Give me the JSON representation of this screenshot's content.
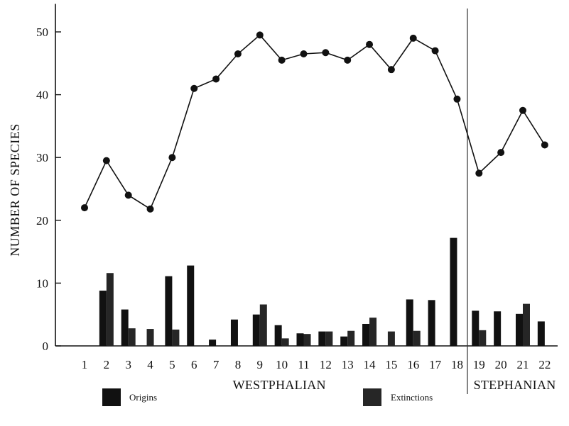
{
  "chart_data": {
    "type": "bar+line",
    "ylabel": "NUMBER OF SPECIES",
    "ylim": [
      0,
      54
    ],
    "yticks": [
      0,
      10,
      20,
      30,
      40,
      50
    ],
    "categories": [
      "1",
      "2",
      "3",
      "4",
      "5",
      "6",
      "7",
      "8",
      "9",
      "10",
      "11",
      "12",
      "13",
      "14",
      "15",
      "16",
      "17",
      "18",
      "19",
      "20",
      "21",
      "22"
    ],
    "periods": [
      {
        "label": "WESTPHALIAN",
        "from": "1",
        "to": "18"
      },
      {
        "label": "STEPHANIAN",
        "from": "19",
        "to": "22"
      }
    ],
    "line": {
      "name": "Number of species",
      "values": [
        22,
        29.5,
        24,
        21.8,
        30,
        41,
        42.5,
        46.5,
        49.5,
        45.5,
        46.5,
        46.7,
        45.5,
        48,
        44,
        49,
        47,
        39.3,
        27.5,
        30.8,
        37.5,
        32
      ]
    },
    "series": [
      {
        "name": "Origins",
        "values": [
          0,
          8.8,
          5.8,
          0,
          11.1,
          12.8,
          1,
          4.2,
          5,
          3.3,
          2,
          2.3,
          1.5,
          3.5,
          0,
          7.4,
          7.3,
          17.2,
          5.6,
          5.5,
          5.1,
          3.9
        ],
        "color": "#111111"
      },
      {
        "name": "Extinctions",
        "values": [
          0,
          11.6,
          2.8,
          2.7,
          2.6,
          0,
          0,
          0,
          6.6,
          1.2,
          1.9,
          2.3,
          2.4,
          4.5,
          2.3,
          2.4,
          0,
          0,
          2.5,
          0,
          6.7,
          0
        ],
        "color": "#262626"
      }
    ],
    "legend": {
      "position": "bottom",
      "items": [
        {
          "label": "Origins",
          "color": "#111111"
        },
        {
          "label": "Extinctions",
          "color": "#262626"
        }
      ]
    },
    "grid": false
  }
}
